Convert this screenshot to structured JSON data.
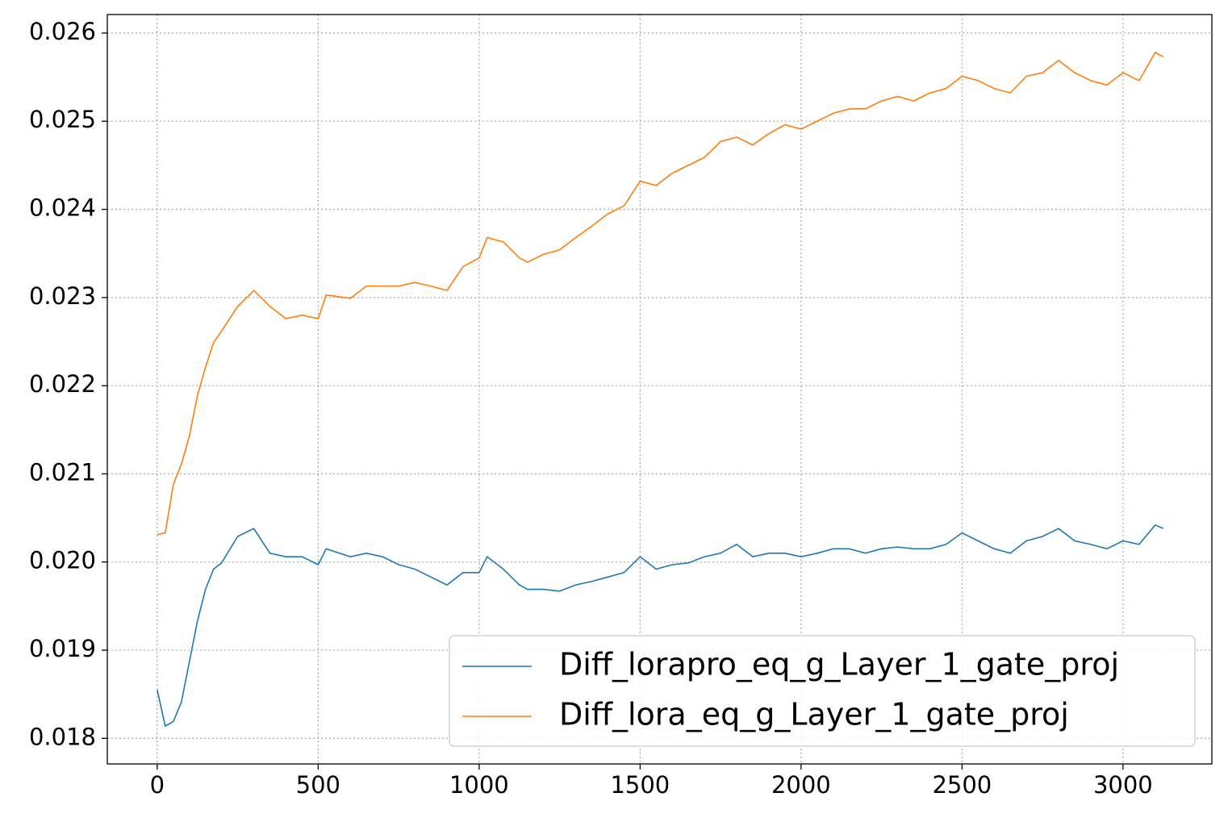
{
  "chart_data": {
    "type": "line",
    "x": [
      0,
      25,
      50,
      75,
      100,
      125,
      150,
      175,
      200,
      250,
      300,
      350,
      400,
      450,
      500,
      525,
      600,
      650,
      700,
      750,
      800,
      850,
      900,
      950,
      1000,
      1025,
      1075,
      1125,
      1150,
      1200,
      1250,
      1300,
      1350,
      1400,
      1450,
      1500,
      1550,
      1600,
      1650,
      1700,
      1750,
      1800,
      1850,
      1900,
      1950,
      2000,
      2050,
      2100,
      2150,
      2200,
      2250,
      2300,
      2350,
      2400,
      2450,
      2500,
      2550,
      2600,
      2650,
      2700,
      2750,
      2800,
      2850,
      2900,
      2950,
      3000,
      3050,
      3100,
      3125
    ],
    "series": [
      {
        "name": "Diff_lorapro_eq_g_Layer_1_gate_proj",
        "color": "#1f77b4",
        "values": [
          0.01855,
          0.01814,
          0.01819,
          0.01841,
          0.01887,
          0.01933,
          0.01969,
          0.01992,
          0.01999,
          0.02029,
          0.02038,
          0.0201,
          0.02006,
          0.02006,
          0.01997,
          0.02015,
          0.02006,
          0.0201,
          0.02006,
          0.01997,
          0.01992,
          0.01983,
          0.01974,
          0.01988,
          0.01988,
          0.02006,
          0.01992,
          0.01974,
          0.01969,
          0.01969,
          0.01967,
          0.01974,
          0.01978,
          0.01983,
          0.01988,
          0.02006,
          0.01992,
          0.01997,
          0.01999,
          0.02006,
          0.0201,
          0.0202,
          0.02006,
          0.0201,
          0.0201,
          0.02006,
          0.0201,
          0.02015,
          0.02015,
          0.0201,
          0.02015,
          0.02017,
          0.02015,
          0.02015,
          0.0202,
          0.02033,
          0.02024,
          0.02015,
          0.0201,
          0.02024,
          0.02029,
          0.02038,
          0.02024,
          0.0202,
          0.02015,
          0.02024,
          0.0202,
          0.02042,
          0.02038
        ]
      },
      {
        "name": "Diff_lora_eq_g_Layer_1_gate_proj",
        "color": "#ff7f0e",
        "values": [
          0.02031,
          0.02033,
          0.02088,
          0.02111,
          0.02143,
          0.02189,
          0.02221,
          0.02249,
          0.02262,
          0.0229,
          0.02308,
          0.0229,
          0.02276,
          0.0228,
          0.02276,
          0.02303,
          0.02299,
          0.02313,
          0.02313,
          0.02313,
          0.02317,
          0.02313,
          0.02308,
          0.02335,
          0.02345,
          0.02368,
          0.02363,
          0.02345,
          0.0234,
          0.02349,
          0.02354,
          0.02368,
          0.02381,
          0.02395,
          0.02404,
          0.02432,
          0.02427,
          0.02441,
          0.0245,
          0.02459,
          0.02477,
          0.02482,
          0.02473,
          0.02486,
          0.02496,
          0.02491,
          0.025,
          0.02509,
          0.02514,
          0.02514,
          0.02523,
          0.02528,
          0.02523,
          0.02532,
          0.02537,
          0.02551,
          0.02546,
          0.02537,
          0.02532,
          0.02551,
          0.02555,
          0.02569,
          0.02555,
          0.02546,
          0.02541,
          0.02555,
          0.02546,
          0.02578,
          0.02573
        ]
      }
    ],
    "xlim": [
      -155,
      3276
    ],
    "ylim": [
      0.01771,
      0.02621
    ],
    "xticks": [
      0,
      500,
      1000,
      1500,
      2000,
      2500,
      3000
    ],
    "yticks": [
      0.018,
      0.019,
      {
        "value": 0.02,
        "label": "0.020"
      },
      0.021,
      0.022,
      0.023,
      0.024,
      0.025,
      0.026
    ],
    "grid": true,
    "legend": "lower right"
  }
}
